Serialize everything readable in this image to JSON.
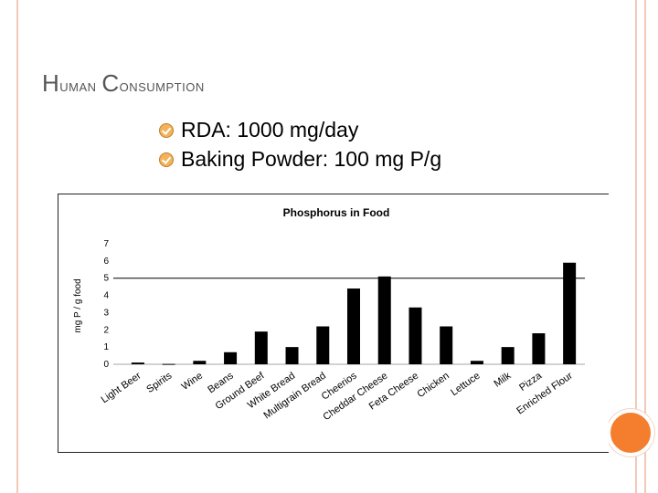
{
  "slide": {
    "title_first": "H",
    "title_rest1": "uman ",
    "title_second": "C",
    "title_rest2": "onsumption",
    "bullets": [
      {
        "icon": "checkmark-bullet-icon",
        "text": "RDA: 1000 mg/day"
      },
      {
        "icon": "checkmark-bullet-icon",
        "text": "Baking Powder: 100 mg P/g"
      }
    ]
  },
  "colors": {
    "accent": "#f47e2e",
    "bars": "#000000",
    "deco": "#f2c9b8"
  },
  "chart_data": {
    "type": "bar",
    "title": "Phosphorus in Food",
    "ylabel": "mg P / g food",
    "xlabel": "",
    "ylim": [
      0,
      7
    ],
    "yticks": [
      0,
      1,
      2,
      3,
      4,
      5,
      6,
      7
    ],
    "reference_line": 5,
    "grid": false,
    "categories": [
      "Light Beer",
      "Spirits",
      "Wine",
      "Beans",
      "Ground Beef",
      "White Bread",
      "Multigrain Bread",
      "Cheerios",
      "Cheddar Cheese",
      "Feta Cheese",
      "Chicken",
      "Lettuce",
      "Milk",
      "Pizza",
      "Enriched Flour"
    ],
    "values": [
      0.1,
      0.02,
      0.2,
      0.7,
      1.9,
      1.0,
      2.2,
      4.4,
      5.1,
      3.3,
      2.2,
      0.2,
      1.0,
      1.8,
      5.9
    ]
  }
}
